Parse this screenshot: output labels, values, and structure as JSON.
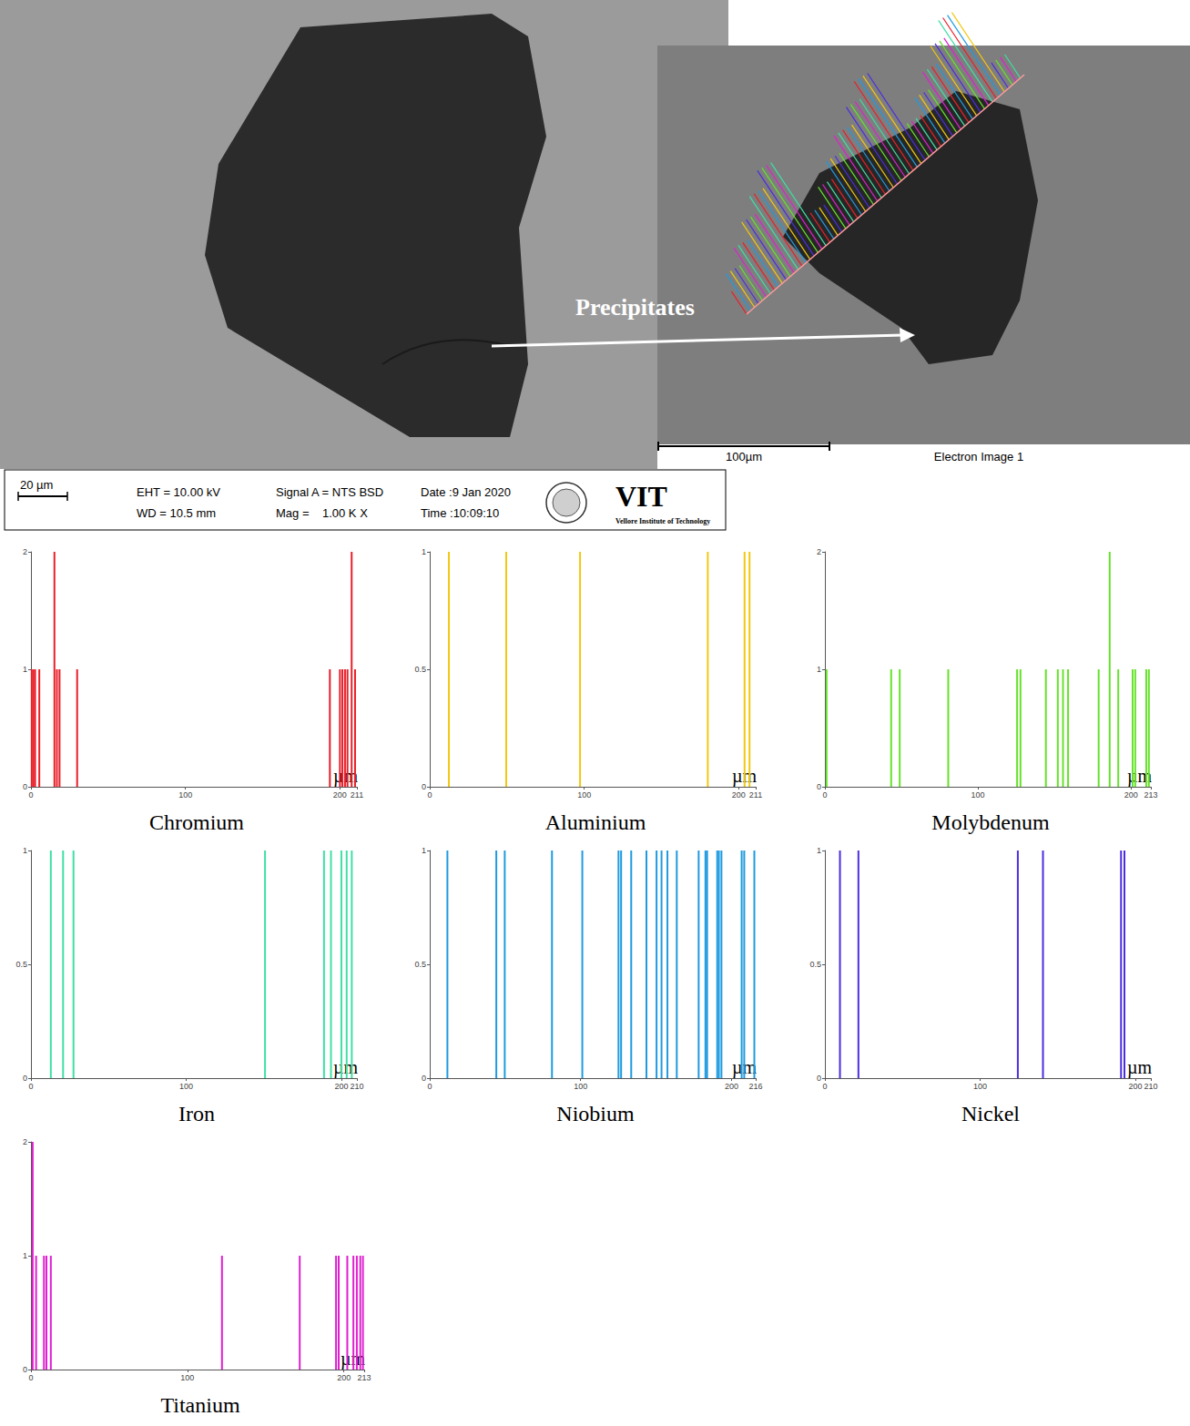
{
  "sem": {
    "left_image": {
      "scale_bar": "20 µm",
      "info": [
        "EHT = 10.00 kV",
        "WD = 10.5 mm",
        "Signal A = NTS BSD",
        "Mag =    1.00 K X",
        "Date :9 Jan 2020",
        "Time :10:09:10"
      ],
      "logo": "VIT",
      "logo_subtitle": "Vellore Institute of Technology"
    },
    "right_image": {
      "scale_bar": "100µm",
      "caption": "Electron Image 1"
    },
    "annotation": "Precipitates"
  },
  "chart_data": [
    {
      "type": "bar",
      "title": "Chromium",
      "xlabel": "µm",
      "color": "#e8202a",
      "x": [
        0.5,
        1.6,
        2.7,
        5.4,
        15.2,
        16.8,
        18.5,
        29.9,
        193.5,
        200,
        201.6,
        203.3,
        204.9,
        207.6,
        209.8
      ],
      "values": [
        1,
        1,
        1,
        1,
        2,
        1,
        1,
        1,
        1,
        1,
        1,
        1,
        1,
        2,
        1
      ],
      "xlim": [
        0,
        211
      ],
      "xticks": [
        0,
        100,
        200
      ],
      "ylim": [
        0,
        2
      ],
      "yticks": [
        0,
        1,
        2
      ],
      "grid": false
    },
    {
      "type": "bar",
      "title": "Aluminium",
      "xlabel": "µm",
      "color": "#f2c80f",
      "x": [
        12.4,
        49.5,
        97.3,
        180,
        203.8,
        207
      ],
      "values": [
        1,
        1,
        1,
        1,
        1,
        1
      ],
      "xlim": [
        0,
        211
      ],
      "xticks": [
        0,
        100,
        200
      ],
      "ylim": [
        0,
        1
      ],
      "yticks": [
        0,
        0.5,
        1
      ],
      "grid": false
    },
    {
      "type": "bar",
      "title": "Molybdenum",
      "xlabel": "µm",
      "color": "#66e22a",
      "x": [
        1.1,
        43.3,
        48.9,
        80.6,
        125.6,
        127.8,
        144.4,
        152.2,
        155.6,
        158.9,
        178.9,
        186.1,
        191.7,
        201.1,
        202.8,
        210,
        211.7
      ],
      "values": [
        1,
        1,
        1,
        1,
        1,
        1,
        1,
        1,
        1,
        1,
        1,
        2,
        1,
        1,
        1,
        1,
        1
      ],
      "xlim": [
        0,
        213
      ],
      "xticks": [
        0,
        100,
        200
      ],
      "ylim": [
        0,
        2
      ],
      "yticks": [
        0,
        1,
        2
      ],
      "grid": false
    },
    {
      "type": "bar",
      "title": "Iron",
      "xlabel": "µm",
      "color": "#3fe0a4",
      "x": [
        12.8,
        20.7,
        27.4,
        150.8,
        188.8,
        193.3,
        200,
        203.4,
        206.7
      ],
      "values": [
        1,
        1,
        1,
        1,
        1,
        1,
        1,
        1,
        1
      ],
      "xlim": [
        0,
        210
      ],
      "xticks": [
        0,
        100,
        200
      ],
      "ylim": [
        0,
        1
      ],
      "yticks": [
        0,
        0.5,
        1
      ],
      "grid": false
    },
    {
      "type": "bar",
      "title": "Niobium",
      "xlabel": "µm",
      "color": "#1e9be0",
      "x": [
        11.7,
        44.1,
        49.7,
        81,
        101.1,
        125.1,
        126.8,
        133.5,
        143.6,
        150.3,
        153.6,
        157.5,
        163.7,
        178.2,
        182.7,
        183.8,
        190.5,
        191.6,
        193.3,
        206.7,
        208.4,
        215.1
      ],
      "values": [
        1,
        1,
        1,
        1,
        1,
        1,
        1,
        1,
        1,
        1,
        1,
        1,
        1,
        1,
        1,
        1,
        1,
        1,
        1,
        1,
        1,
        1
      ],
      "xlim": [
        0,
        216
      ],
      "xticks": [
        0,
        100,
        200
      ],
      "ylim": [
        0,
        1
      ],
      "yticks": [
        0,
        0.5,
        1
      ],
      "grid": false
    },
    {
      "type": "bar",
      "title": "Nickel",
      "xlabel": "µm",
      "color": "#4a2de0",
      "x": [
        9.7,
        21.6,
        124.3,
        140.5,
        190.8,
        193
      ],
      "values": [
        1,
        1,
        1,
        1,
        1,
        1
      ],
      "xlim": [
        0,
        210
      ],
      "xticks": [
        0,
        100,
        200
      ],
      "ylim": [
        0,
        1
      ],
      "yticks": [
        0,
        0.5,
        1
      ],
      "grid": false
    },
    {
      "type": "bar",
      "title": "Titanium",
      "xlabel": "µm",
      "color": "#e020d0",
      "x": [
        1.1,
        3.3,
        8.3,
        9.9,
        12.7,
        122.1,
        171.8,
        195,
        196.7,
        202.2,
        206.1,
        208.3,
        210.5,
        212.2
      ],
      "values": [
        2,
        1,
        1,
        1,
        1,
        1,
        1,
        1,
        1,
        1,
        1,
        1,
        1,
        1
      ],
      "xlim": [
        0,
        213
      ],
      "xticks": [
        0,
        100,
        200
      ],
      "ylim": [
        0,
        2
      ],
      "yticks": [
        0,
        1,
        2
      ],
      "grid": false
    }
  ]
}
